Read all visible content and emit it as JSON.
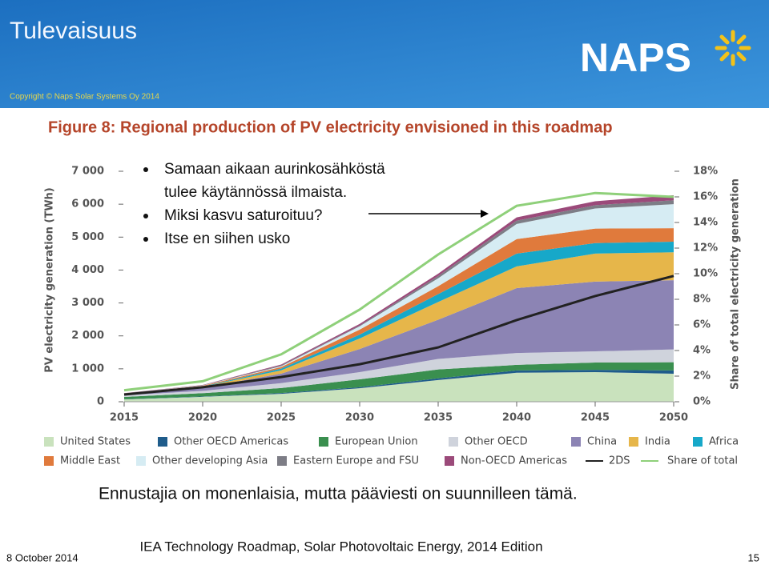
{
  "header": {
    "title": "Tulevaisuus",
    "copyright": "Copyright © Naps Solar Systems Oy 2014",
    "logo": "NAPS"
  },
  "chart_data": {
    "type": "area",
    "stacked": true,
    "title": "Figure 8: Regional production of PV electricity envisioned in this roadmap",
    "y_label": "PV electricity generation (TWh)",
    "y2_label": "Share of total electricity generation",
    "x": [
      2015,
      2020,
      2025,
      2030,
      2035,
      2040,
      2045,
      2050
    ],
    "xlim": [
      2015,
      2050
    ],
    "xticks": [
      2015,
      2020,
      2025,
      2030,
      2035,
      2040,
      2045,
      2050
    ],
    "ylim": [
      0,
      7000
    ],
    "yticks": [
      0,
      {
        "value": 1000,
        "label": "1 000"
      },
      {
        "value": 2000,
        "label": "2 000"
      },
      {
        "value": 3000,
        "label": "3 000"
      },
      {
        "value": 4000,
        "label": "4 000"
      },
      {
        "value": 5000,
        "label": "5 000"
      },
      {
        "value": 6000,
        "label": "6 000"
      },
      {
        "value": 7000,
        "label": "7 000"
      }
    ],
    "y2lim": [
      0,
      18
    ],
    "y2ticks": [
      {
        "value": 0,
        "label": "0%"
      },
      {
        "value": 2,
        "label": "2%"
      },
      {
        "value": 4,
        "label": "4%"
      },
      {
        "value": 6,
        "label": "6%"
      },
      {
        "value": 8,
        "label": "8%"
      },
      {
        "value": 10,
        "label": "10%"
      },
      {
        "value": 12,
        "label": "12%"
      },
      {
        "value": 14,
        "label": "14%"
      },
      {
        "value": 16,
        "label": "16%"
      },
      {
        "value": 18,
        "label": "18%"
      }
    ],
    "series": [
      {
        "name": "United States",
        "color": "#c9e2bd",
        "values": [
          70,
          150,
          240,
          410,
          660,
          880,
          900,
          850
        ]
      },
      {
        "name": "Other OECD Americas",
        "color": "#1f5c8b",
        "values": [
          5,
          10,
          25,
          30,
          50,
          70,
          70,
          100
        ]
      },
      {
        "name": "European Union",
        "color": "#3a8f4f",
        "values": [
          70,
          100,
          150,
          240,
          270,
          170,
          220,
          250
        ]
      },
      {
        "name": "Other OECD",
        "color": "#cfd3dc",
        "values": [
          50,
          70,
          150,
          220,
          320,
          360,
          340,
          390
        ]
      },
      {
        "name": "China",
        "color": "#8c84b4",
        "values": [
          30,
          100,
          290,
          700,
          1190,
          1970,
          2120,
          2100
        ]
      },
      {
        "name": "India",
        "color": "#e6b64a",
        "values": [
          10,
          25,
          100,
          320,
          540,
          660,
          850,
          850
        ]
      },
      {
        "name": "Africa",
        "color": "#17a8c9",
        "values": [
          5,
          10,
          50,
          120,
          240,
          390,
          320,
          320
        ]
      },
      {
        "name": "Middle East",
        "color": "#e07a3c",
        "values": [
          5,
          20,
          50,
          150,
          240,
          440,
          440,
          410
        ]
      },
      {
        "name": "Other developing Asia",
        "color": "#d6ecf3",
        "values": [
          5,
          10,
          25,
          100,
          240,
          460,
          610,
          730
        ]
      },
      {
        "name": "Eastern Europe and FSU",
        "color": "#7d7d86",
        "values": [
          5,
          5,
          25,
          25,
          70,
          100,
          100,
          120
        ]
      },
      {
        "name": "Non-OECD Americas",
        "color": "#9b4a7a",
        "values": [
          5,
          10,
          25,
          50,
          70,
          100,
          120,
          150
        ]
      }
    ],
    "line_series": [
      {
        "name": "2DS",
        "color": "#222222",
        "values": [
          220,
          440,
          750,
          1140,
          1650,
          2480,
          3210,
          3820
        ]
      },
      {
        "name": "Share of total",
        "color": "#8fd07a",
        "axis": "y2",
        "values": [
          0.9,
          1.6,
          3.7,
          7.2,
          11.5,
          15.3,
          16.3,
          16.0
        ]
      }
    ]
  },
  "overlay": {
    "bullets": [
      [
        "Samaan aikaan aurinkosähköstä",
        "tulee käytännössä ilmaista."
      ],
      [
        "Miksi kasvu saturoituu?"
      ],
      [
        "Itse en siihen usko"
      ]
    ]
  },
  "caption": "Ennustajia on monenlaisia, mutta pääviesti on suunnilleen tämä.",
  "source": "IEA Technology Roadmap, Solar Photovoltaic Energy, 2014 Edition",
  "footer": {
    "date": "8 October 2014",
    "page": "15"
  }
}
